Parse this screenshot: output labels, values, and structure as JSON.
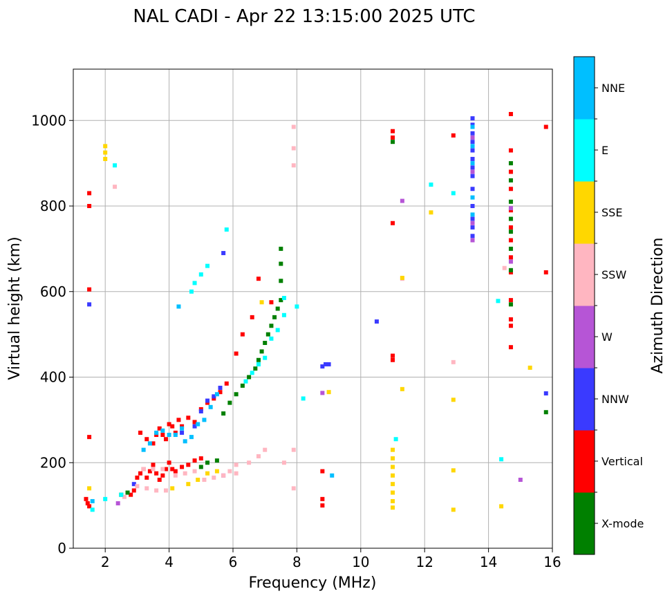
{
  "chart_data": {
    "type": "scatter",
    "title": "NAL CADI - Apr 22 13:15:00 2025 UTC",
    "xlabel": "Frequency (MHz)",
    "ylabel": "Virtual height (km)",
    "xlim": [
      1,
      16
    ],
    "ylim": [
      0,
      1120
    ],
    "xticks": [
      2,
      4,
      6,
      8,
      10,
      12,
      14,
      16
    ],
    "yticks": [
      0,
      200,
      400,
      600,
      800,
      1000
    ],
    "grid": true,
    "colorbar": {
      "label": "Azimuth Direction",
      "categories": [
        {
          "name": "X-mode",
          "color": "#008000"
        },
        {
          "name": "Vertical",
          "color": "#ff0000"
        },
        {
          "name": "NNW",
          "color": "#3a3aff"
        },
        {
          "name": "W",
          "color": "#b655d6"
        },
        {
          "name": "SSW",
          "color": "#ffb6c1"
        },
        {
          "name": "SSE",
          "color": "#ffd700"
        },
        {
          "name": "E",
          "color": "#00ffff"
        },
        {
          "name": "NNE",
          "color": "#00bfff"
        }
      ]
    },
    "series": [
      {
        "name": "Vertical",
        "points": [
          [
            1.4,
            115
          ],
          [
            1.45,
            105
          ],
          [
            1.5,
            98
          ],
          [
            1.5,
            260
          ],
          [
            1.5,
            605
          ],
          [
            1.5,
            800
          ],
          [
            1.5,
            830
          ],
          [
            2.8,
            125
          ],
          [
            2.9,
            135
          ],
          [
            3.0,
            165
          ],
          [
            3.1,
            175
          ],
          [
            3.2,
            185
          ],
          [
            3.3,
            165
          ],
          [
            3.4,
            180
          ],
          [
            3.5,
            195
          ],
          [
            3.6,
            175
          ],
          [
            3.7,
            160
          ],
          [
            3.8,
            170
          ],
          [
            3.9,
            185
          ],
          [
            4.0,
            200
          ],
          [
            4.1,
            185
          ],
          [
            4.2,
            180
          ],
          [
            4.4,
            190
          ],
          [
            4.6,
            195
          ],
          [
            4.8,
            205
          ],
          [
            5.0,
            210
          ],
          [
            3.1,
            270
          ],
          [
            3.3,
            255
          ],
          [
            3.5,
            245
          ],
          [
            3.6,
            265
          ],
          [
            3.7,
            280
          ],
          [
            3.8,
            265
          ],
          [
            3.9,
            255
          ],
          [
            4.0,
            290
          ],
          [
            4.1,
            285
          ],
          [
            4.2,
            270
          ],
          [
            4.3,
            300
          ],
          [
            4.4,
            285
          ],
          [
            4.6,
            305
          ],
          [
            4.8,
            295
          ],
          [
            5.0,
            325
          ],
          [
            5.2,
            340
          ],
          [
            5.4,
            350
          ],
          [
            5.6,
            365
          ],
          [
            5.8,
            385
          ],
          [
            6.1,
            455
          ],
          [
            6.3,
            500
          ],
          [
            6.6,
            540
          ],
          [
            6.8,
            630
          ],
          [
            7.2,
            575
          ],
          [
            8.8,
            100
          ],
          [
            8.8,
            115
          ],
          [
            8.8,
            180
          ],
          [
            11.0,
            450
          ],
          [
            11.0,
            440
          ],
          [
            11.0,
            760
          ],
          [
            11.0,
            960
          ],
          [
            11.0,
            975
          ],
          [
            12.9,
            965
          ],
          [
            14.7,
            470
          ],
          [
            14.7,
            520
          ],
          [
            14.7,
            535
          ],
          [
            14.7,
            580
          ],
          [
            14.7,
            645
          ],
          [
            14.7,
            680
          ],
          [
            14.7,
            720
          ],
          [
            14.7,
            750
          ],
          [
            14.7,
            790
          ],
          [
            14.7,
            840
          ],
          [
            14.7,
            880
          ],
          [
            14.7,
            930
          ],
          [
            14.7,
            1015
          ],
          [
            15.8,
            645
          ],
          [
            15.8,
            985
          ]
        ]
      },
      {
        "name": "X-mode",
        "points": [
          [
            2.5,
            125
          ],
          [
            2.7,
            130
          ],
          [
            5.0,
            190
          ],
          [
            5.2,
            200
          ],
          [
            5.5,
            205
          ],
          [
            5.7,
            315
          ],
          [
            5.9,
            340
          ],
          [
            6.1,
            360
          ],
          [
            6.3,
            380
          ],
          [
            6.5,
            400
          ],
          [
            6.7,
            420
          ],
          [
            6.8,
            440
          ],
          [
            6.9,
            460
          ],
          [
            7.0,
            480
          ],
          [
            7.1,
            500
          ],
          [
            7.2,
            520
          ],
          [
            7.3,
            540
          ],
          [
            7.4,
            560
          ],
          [
            7.5,
            580
          ],
          [
            7.5,
            625
          ],
          [
            7.5,
            665
          ],
          [
            7.5,
            700
          ],
          [
            11.0,
            950
          ],
          [
            14.7,
            570
          ],
          [
            14.7,
            650
          ],
          [
            14.7,
            700
          ],
          [
            14.7,
            740
          ],
          [
            14.7,
            770
          ],
          [
            14.7,
            810
          ],
          [
            14.7,
            860
          ],
          [
            14.7,
            900
          ],
          [
            15.8,
            318
          ]
        ]
      },
      {
        "name": "NNW",
        "points": [
          [
            1.5,
            570
          ],
          [
            2.9,
            150
          ],
          [
            4.4,
            270
          ],
          [
            4.8,
            285
          ],
          [
            5.0,
            320
          ],
          [
            5.2,
            345
          ],
          [
            5.4,
            355
          ],
          [
            5.6,
            375
          ],
          [
            5.7,
            690
          ],
          [
            8.8,
            425
          ],
          [
            8.9,
            430
          ],
          [
            9.0,
            430
          ],
          [
            10.5,
            530
          ],
          [
            13.5,
            730
          ],
          [
            13.5,
            750
          ],
          [
            13.5,
            770
          ],
          [
            13.5,
            800
          ],
          [
            13.5,
            840
          ],
          [
            13.5,
            870
          ],
          [
            13.5,
            890
          ],
          [
            13.5,
            910
          ],
          [
            13.5,
            930
          ],
          [
            13.5,
            950
          ],
          [
            13.5,
            970
          ],
          [
            13.5,
            990
          ],
          [
            13.5,
            1005
          ],
          [
            15.8,
            362
          ]
        ]
      },
      {
        "name": "W",
        "points": [
          [
            2.4,
            105
          ],
          [
            5.7,
            170
          ],
          [
            8.8,
            363
          ],
          [
            11.3,
            812
          ],
          [
            13.5,
            720
          ],
          [
            13.5,
            760
          ],
          [
            13.5,
            880
          ],
          [
            13.5,
            960
          ],
          [
            14.7,
            670
          ],
          [
            14.7,
            795
          ],
          [
            15.0,
            160
          ]
        ]
      },
      {
        "name": "SSW",
        "points": [
          [
            2.6,
            120
          ],
          [
            3.0,
            145
          ],
          [
            3.3,
            140
          ],
          [
            3.6,
            135
          ],
          [
            3.9,
            135
          ],
          [
            3.2,
            185
          ],
          [
            3.5,
            185
          ],
          [
            3.8,
            185
          ],
          [
            4.2,
            170
          ],
          [
            4.5,
            175
          ],
          [
            4.8,
            180
          ],
          [
            5.1,
            160
          ],
          [
            5.4,
            165
          ],
          [
            5.7,
            170
          ],
          [
            5.9,
            180
          ],
          [
            6.1,
            175
          ],
          [
            6.1,
            195
          ],
          [
            6.5,
            200
          ],
          [
            6.8,
            215
          ],
          [
            7.0,
            230
          ],
          [
            7.6,
            200
          ],
          [
            7.9,
            230
          ],
          [
            7.9,
            140
          ],
          [
            2.3,
            845
          ],
          [
            7.9,
            895
          ],
          [
            7.9,
            935
          ],
          [
            7.9,
            985
          ],
          [
            11.3,
            630
          ],
          [
            12.9,
            435
          ],
          [
            14.5,
            655
          ]
        ]
      },
      {
        "name": "SSE",
        "points": [
          [
            1.5,
            140
          ],
          [
            2.0,
            910
          ],
          [
            2.0,
            925
          ],
          [
            2.0,
            940
          ],
          [
            4.1,
            140
          ],
          [
            4.6,
            150
          ],
          [
            4.9,
            160
          ],
          [
            5.2,
            175
          ],
          [
            5.5,
            180
          ],
          [
            6.9,
            575
          ],
          [
            9.0,
            365
          ],
          [
            11.0,
            95
          ],
          [
            11.0,
            110
          ],
          [
            11.0,
            130
          ],
          [
            11.0,
            150
          ],
          [
            11.0,
            170
          ],
          [
            11.0,
            190
          ],
          [
            11.0,
            210
          ],
          [
            11.0,
            230
          ],
          [
            11.3,
            372
          ],
          [
            11.3,
            632
          ],
          [
            12.2,
            785
          ],
          [
            12.9,
            90
          ],
          [
            12.9,
            182
          ],
          [
            12.9,
            347
          ],
          [
            14.4,
            98
          ],
          [
            15.3,
            422
          ]
        ]
      },
      {
        "name": "E",
        "points": [
          [
            1.6,
            90
          ],
          [
            2.0,
            115
          ],
          [
            2.5,
            125
          ],
          [
            2.3,
            895
          ],
          [
            4.7,
            600
          ],
          [
            4.8,
            620
          ],
          [
            5.0,
            640
          ],
          [
            5.2,
            660
          ],
          [
            5.8,
            745
          ],
          [
            6.4,
            390
          ],
          [
            6.6,
            410
          ],
          [
            6.8,
            430
          ],
          [
            7.0,
            445
          ],
          [
            7.2,
            490
          ],
          [
            7.4,
            510
          ],
          [
            7.6,
            545
          ],
          [
            7.6,
            585
          ],
          [
            8.0,
            565
          ],
          [
            8.2,
            350
          ],
          [
            11.1,
            255
          ],
          [
            12.2,
            850
          ],
          [
            12.9,
            830
          ],
          [
            14.3,
            578
          ],
          [
            14.4,
            208
          ]
        ]
      },
      {
        "name": "NNE",
        "points": [
          [
            1.6,
            110
          ],
          [
            3.2,
            230
          ],
          [
            3.4,
            245
          ],
          [
            3.6,
            270
          ],
          [
            3.8,
            275
          ],
          [
            4.0,
            265
          ],
          [
            4.2,
            265
          ],
          [
            4.4,
            280
          ],
          [
            4.5,
            250
          ],
          [
            4.7,
            260
          ],
          [
            4.9,
            290
          ],
          [
            5.1,
            300
          ],
          [
            5.3,
            330
          ],
          [
            5.5,
            360
          ],
          [
            4.3,
            565
          ],
          [
            9.1,
            170
          ],
          [
            13.5,
            780
          ],
          [
            13.5,
            820
          ],
          [
            13.5,
            900
          ],
          [
            13.5,
            940
          ],
          [
            13.5,
            985
          ]
        ]
      }
    ]
  }
}
